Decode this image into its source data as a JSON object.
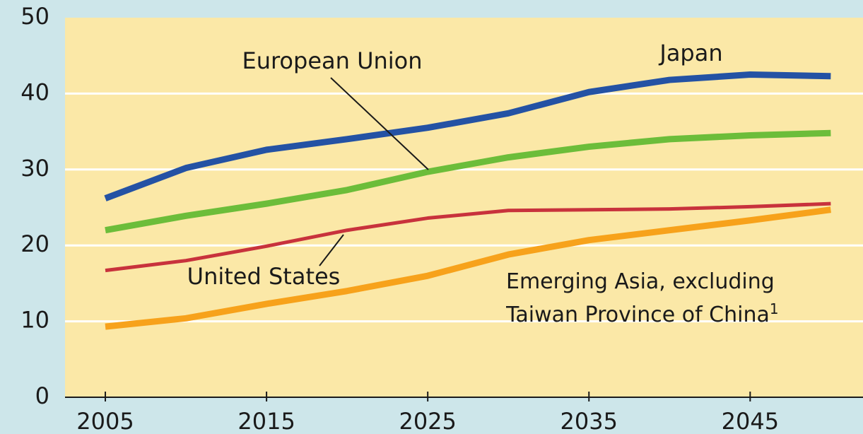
{
  "chart_data": {
    "type": "line",
    "x": [
      2005,
      2010,
      2015,
      2020,
      2025,
      2030,
      2035,
      2040,
      2045,
      2050
    ],
    "series": [
      {
        "name": "Japan",
        "color": "#2452a4",
        "values": [
          26.2,
          30.2,
          32.6,
          34.0,
          35.5,
          37.4,
          40.2,
          41.8,
          42.5,
          42.3
        ]
      },
      {
        "name": "European Union",
        "color": "#6cbd3a",
        "values": [
          22.0,
          23.9,
          25.5,
          27.3,
          29.7,
          31.6,
          33.0,
          34.0,
          34.5,
          34.8
        ]
      },
      {
        "name": "United States",
        "color": "#c8323c",
        "values": [
          16.7,
          18.0,
          19.9,
          22.0,
          23.6,
          24.6,
          24.7,
          24.8,
          25.1,
          25.5
        ]
      },
      {
        "name": "Emerging Asia, excluding Taiwan Province of China",
        "color": "#f7a21b",
        "values": [
          9.3,
          10.4,
          12.3,
          14.0,
          16.0,
          18.8,
          20.7,
          22.0,
          23.3,
          24.7
        ]
      }
    ],
    "footnote_marker": "1",
    "xlim": [
      2002.5,
      2052
    ],
    "xticks": [
      2005,
      2015,
      2025,
      2035,
      2045
    ],
    "ylim": [
      0,
      50
    ],
    "yticks": [
      0,
      10,
      20,
      30,
      40,
      50
    ],
    "grid": true
  }
}
